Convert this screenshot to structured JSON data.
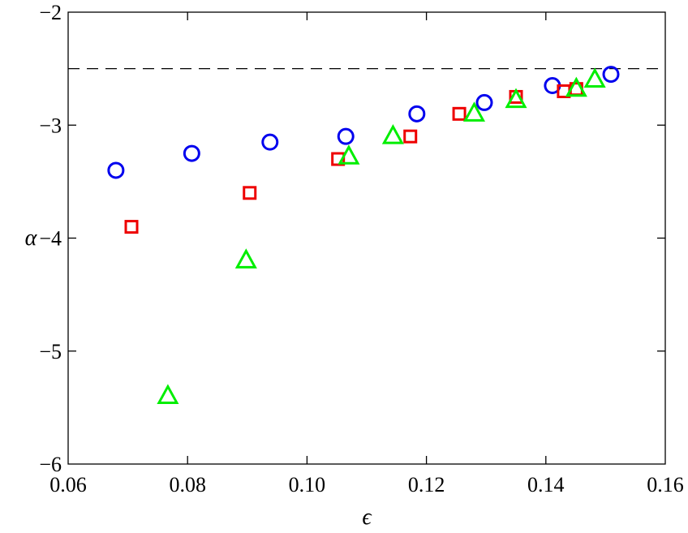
{
  "chart_data": {
    "type": "scatter",
    "xlabel": "ϵ",
    "ylabel": "α",
    "xlim": [
      0.06,
      0.16
    ],
    "ylim": [
      -6,
      -2
    ],
    "xticks": [
      "0.06",
      "0.08",
      "0.10",
      "0.12",
      "0.14",
      "0.16"
    ],
    "xtick_values": [
      0.06,
      0.08,
      0.1,
      0.12,
      0.14,
      0.16
    ],
    "yticks": [
      "−6",
      "−5",
      "−4",
      "−3",
      "−2"
    ],
    "ytick_values": [
      -6,
      -5,
      -4,
      -3,
      -2
    ],
    "grid": false,
    "reference_line": {
      "y": -2.5,
      "style": "dashed",
      "color": "#000000"
    },
    "series": [
      {
        "marker": "circle",
        "color": "#0000ee",
        "x": [
          0.068,
          0.0807,
          0.0938,
          0.1065,
          0.1184,
          0.1297,
          0.1411,
          0.1509
        ],
        "y": [
          -3.4,
          -3.25,
          -3.15,
          -3.1,
          -2.9,
          -2.8,
          -2.65,
          -2.55
        ]
      },
      {
        "marker": "square",
        "color": "#ee0000",
        "x": [
          0.0706,
          0.0904,
          0.1052,
          0.1173,
          0.1255,
          0.135,
          0.143,
          0.1451
        ],
        "y": [
          -3.9,
          -3.6,
          -3.3,
          -3.1,
          -2.9,
          -2.75,
          -2.7,
          -2.68
        ]
      },
      {
        "marker": "triangle",
        "color": "#00ee00",
        "x": [
          0.0767,
          0.0898,
          0.107,
          0.1144,
          0.128,
          0.135,
          0.1451,
          0.1482
        ],
        "y": [
          -5.4,
          -4.2,
          -3.28,
          -3.1,
          -2.9,
          -2.78,
          -2.68,
          -2.6
        ]
      }
    ]
  }
}
